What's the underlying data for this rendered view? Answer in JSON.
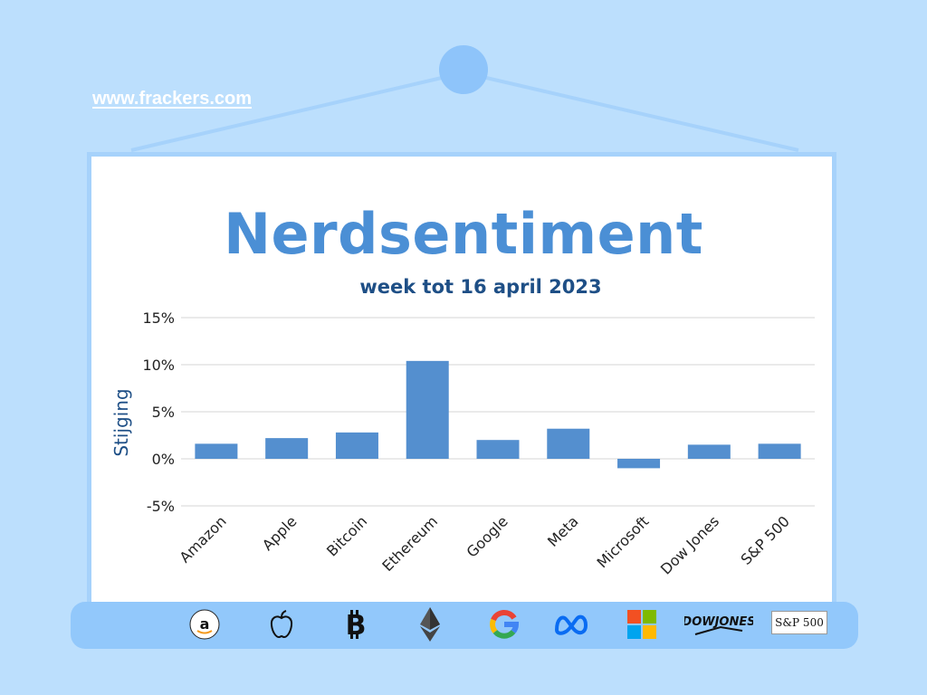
{
  "website": "www.frackers.com",
  "title": "Nerdsentiment",
  "subtitle": "week tot 16 april 2023",
  "chart_data": {
    "type": "bar",
    "categories": [
      "Amazon",
      "Apple",
      "Bitcoin",
      "Ethereum",
      "Google",
      "Meta",
      "Microsoft",
      "Dow Jones",
      "S&P 500"
    ],
    "values": [
      1.6,
      2.2,
      2.8,
      10.4,
      2.0,
      3.2,
      -1.0,
      1.5,
      1.6
    ],
    "ylabel": "Stijging",
    "xlabel": "",
    "yticks": [
      "15%",
      "10%",
      "5%",
      "0%",
      "-5%"
    ],
    "ytick_values": [
      15,
      10,
      5,
      0,
      -5
    ],
    "ylim": [
      -5,
      15
    ],
    "grid": true,
    "bar_color": "#548fcf"
  },
  "logos": [
    {
      "name": "amazon-logo-icon"
    },
    {
      "name": "apple-logo-icon"
    },
    {
      "name": "bitcoin-logo-icon"
    },
    {
      "name": "ethereum-logo-icon"
    },
    {
      "name": "google-logo-icon"
    },
    {
      "name": "meta-logo-icon"
    },
    {
      "name": "microsoft-logo-icon"
    },
    {
      "name": "dowjones-logo-icon",
      "text": "DOWJONES"
    },
    {
      "name": "sp500-logo-icon",
      "text": "S&P 500"
    }
  ],
  "colors": {
    "background": "#bcdffd",
    "title": "#4b8fd5",
    "subtitle": "#1e4f86"
  }
}
